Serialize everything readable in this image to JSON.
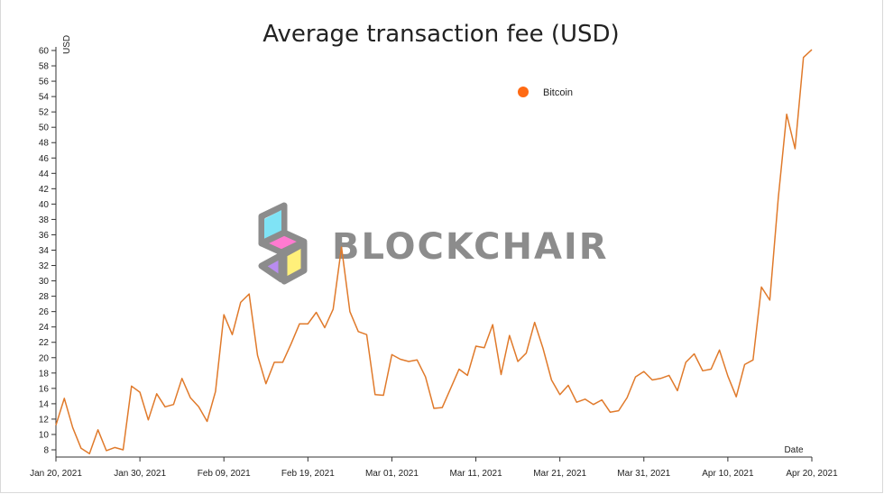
{
  "colors": {
    "series": "#e07a2b",
    "legend_dot": "#ff6a13",
    "axis": "#333333",
    "watermark": "#8c8c8c"
  },
  "watermark": {
    "text": "BLOCKCHAIR"
  },
  "chart_data": {
    "type": "line",
    "title": "Average transaction fee (USD)",
    "xlabel": "Date",
    "ylabel": "USD",
    "ylim": [
      7,
      61
    ],
    "yticks": [
      8,
      10,
      12,
      14,
      16,
      18,
      20,
      22,
      24,
      26,
      28,
      30,
      32,
      34,
      36,
      38,
      40,
      42,
      44,
      46,
      48,
      50,
      52,
      54,
      56,
      58,
      60
    ],
    "xticks": [
      "2021-01-20",
      "2021-01-30",
      "2021-02-09",
      "2021-02-19",
      "2021-03-01",
      "2021-03-11",
      "2021-03-21",
      "2021-03-31",
      "2021-04-10",
      "2021-04-20"
    ],
    "xtick_labels": [
      "Jan 20, 2021",
      "Jan 30, 2021",
      "Feb 09, 2021",
      "Feb 19, 2021",
      "Mar 01, 2021",
      "Mar 11, 2021",
      "Mar 21, 2021",
      "Mar 31, 2021",
      "Apr 10, 2021",
      "Apr 20, 2021"
    ],
    "legend": "top-center",
    "grid": false,
    "series": [
      {
        "name": "Bitcoin",
        "x": [
          "2021-01-20",
          "2021-01-21",
          "2021-01-22",
          "2021-01-23",
          "2021-01-24",
          "2021-01-25",
          "2021-01-26",
          "2021-01-27",
          "2021-01-28",
          "2021-01-29",
          "2021-01-30",
          "2021-01-31",
          "2021-02-01",
          "2021-02-02",
          "2021-02-03",
          "2021-02-04",
          "2021-02-05",
          "2021-02-06",
          "2021-02-07",
          "2021-02-08",
          "2021-02-09",
          "2021-02-10",
          "2021-02-11",
          "2021-02-12",
          "2021-02-13",
          "2021-02-14",
          "2021-02-15",
          "2021-02-16",
          "2021-02-17",
          "2021-02-18",
          "2021-02-19",
          "2021-02-20",
          "2021-02-21",
          "2021-02-22",
          "2021-02-23",
          "2021-02-24",
          "2021-02-25",
          "2021-02-26",
          "2021-02-27",
          "2021-02-28",
          "2021-03-01",
          "2021-03-02",
          "2021-03-03",
          "2021-03-04",
          "2021-03-05",
          "2021-03-06",
          "2021-03-07",
          "2021-03-08",
          "2021-03-09",
          "2021-03-10",
          "2021-03-11",
          "2021-03-12",
          "2021-03-13",
          "2021-03-14",
          "2021-03-15",
          "2021-03-16",
          "2021-03-17",
          "2021-03-18",
          "2021-03-19",
          "2021-03-20",
          "2021-03-21",
          "2021-03-22",
          "2021-03-23",
          "2021-03-24",
          "2021-03-25",
          "2021-03-26",
          "2021-03-27",
          "2021-03-28",
          "2021-03-29",
          "2021-03-30",
          "2021-03-31",
          "2021-04-01",
          "2021-04-02",
          "2021-04-03",
          "2021-04-04",
          "2021-04-05",
          "2021-04-06",
          "2021-04-07",
          "2021-04-08",
          "2021-04-09",
          "2021-04-10",
          "2021-04-11",
          "2021-04-12",
          "2021-04-13",
          "2021-04-14",
          "2021-04-15",
          "2021-04-16",
          "2021-04-17",
          "2021-04-18",
          "2021-04-19",
          "2021-04-20"
        ],
        "values": [
          11.2,
          14.7,
          10.9,
          8.2,
          7.5,
          10.6,
          7.9,
          8.3,
          8.0,
          16.3,
          15.5,
          11.9,
          15.3,
          13.6,
          13.9,
          17.3,
          14.8,
          13.6,
          11.7,
          15.6,
          25.6,
          23.0,
          27.2,
          28.3,
          20.3,
          16.6,
          19.4,
          19.4,
          21.8,
          24.4,
          24.4,
          25.9,
          23.9,
          26.3,
          34.4,
          26.0,
          23.4,
          23.0,
          15.2,
          15.1,
          20.4,
          19.8,
          19.5,
          19.7,
          17.5,
          13.4,
          13.5,
          16.0,
          18.5,
          17.7,
          21.5,
          21.3,
          24.3,
          17.8,
          22.9,
          19.5,
          20.6,
          24.6,
          21.2,
          17.1,
          15.2,
          16.4,
          14.2,
          14.6,
          13.9,
          14.5,
          12.9,
          13.1,
          14.8,
          17.5,
          18.2,
          17.1,
          17.3,
          17.7,
          15.7,
          19.4,
          20.5,
          18.3,
          18.5,
          21.0,
          17.6,
          14.9,
          19.1,
          19.7,
          29.2,
          27.5,
          40.8,
          51.7,
          47.2,
          59.1,
          60.1
        ]
      }
    ]
  }
}
